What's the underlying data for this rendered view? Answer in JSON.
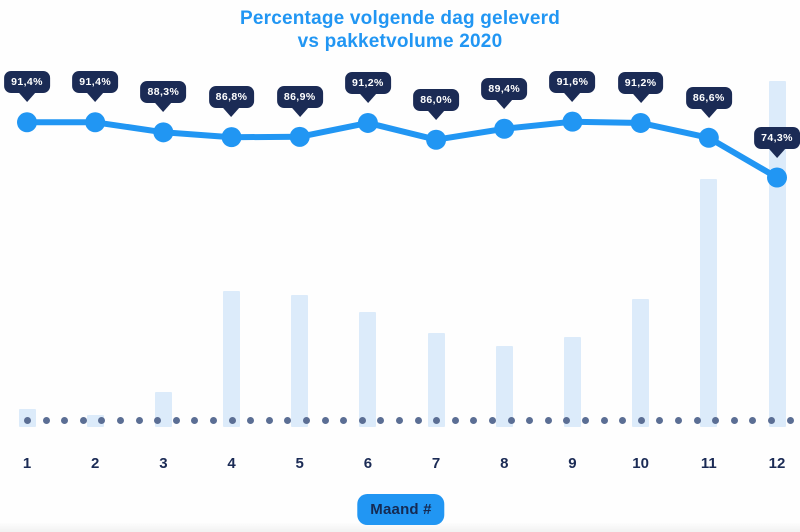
{
  "title": {
    "line1": "Percentage volgende dag geleverd",
    "line2": "vs pakketvolume 2020"
  },
  "axis_badge": {
    "label": "Maand #"
  },
  "colors": {
    "background": "#fefefe",
    "title": "#2196f3",
    "line": "#2196f3",
    "marker": "#2196f3",
    "tooltip_bg": "#1b2b55",
    "tooltip_text": "#ffffff",
    "bar_fill": "#dcebfa",
    "baseline_dot": "#5b6e94",
    "axis_label": "#1b2b55",
    "badge_bg": "#2196f3",
    "badge_text": "#152a52"
  },
  "chart_data": {
    "type": "combo",
    "title": "Percentage volgende dag geleverd vs pakketvolume 2020",
    "categories": [
      "1",
      "2",
      "3",
      "4",
      "5",
      "6",
      "7",
      "8",
      "9",
      "10",
      "11",
      "12"
    ],
    "xlabel": "Maand #",
    "grid": false,
    "legend": "none",
    "y_axis_visible": false,
    "series": [
      {
        "name": "Percentage volgende dag geleverd",
        "type": "line",
        "unit": "%",
        "values": [
          91.4,
          91.4,
          88.3,
          86.8,
          86.9,
          91.2,
          86.0,
          89.4,
          91.6,
          91.2,
          86.6,
          74.3
        ],
        "point_labels": [
          "91,4%",
          "91,4%",
          "88,3%",
          "86,8%",
          "86,9%",
          "91,2%",
          "86,0%",
          "89,4%",
          "91,6%",
          "91,2%",
          "86,6%",
          "74,3%"
        ]
      },
      {
        "name": "Pakketvolume 2020",
        "type": "bar",
        "unit": "relative volume, percent of max (value axis not shown)",
        "values": [
          5.2,
          3.5,
          10.1,
          39.3,
          38.2,
          33.2,
          27.2,
          23.4,
          26.0,
          37.0,
          71.7,
          100
        ]
      }
    ]
  }
}
